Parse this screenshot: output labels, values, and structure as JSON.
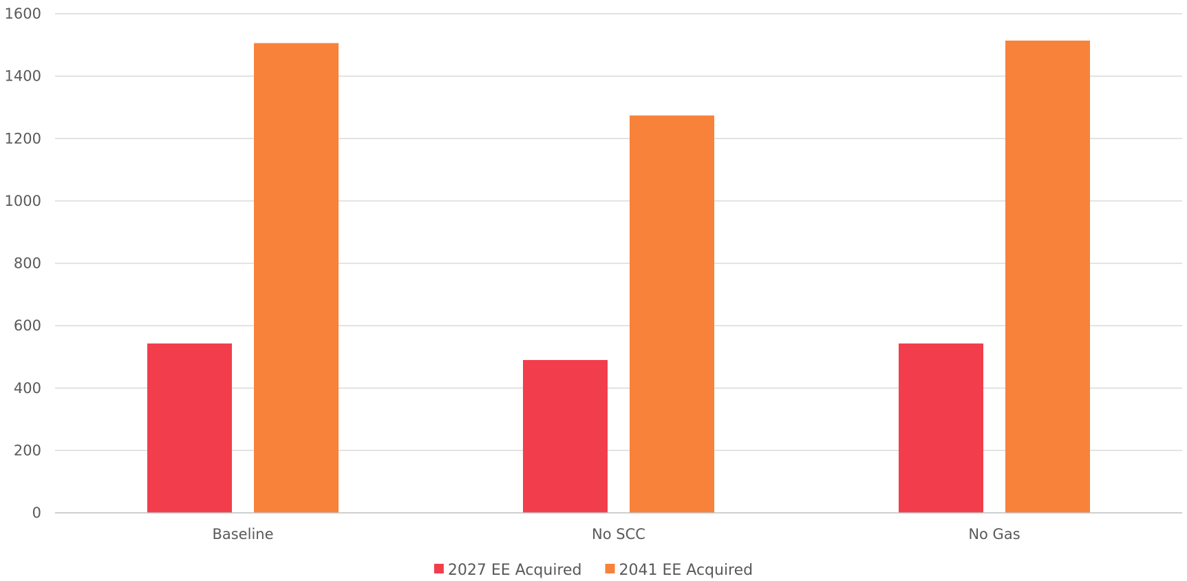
{
  "chart_data": {
    "type": "bar",
    "title": "",
    "xlabel": "",
    "ylabel": "",
    "categories": [
      "Baseline",
      "No SCC",
      "No Gas"
    ],
    "series": [
      {
        "name": "2027 EE Acquired",
        "color": "#f23e4c",
        "values": [
          543,
          490,
          543
        ]
      },
      {
        "name": "2041 EE Acquired",
        "color": "#f8823a",
        "values": [
          1506,
          1274,
          1514
        ]
      }
    ],
    "ylim": [
      0,
      1600
    ],
    "yticks": [
      0,
      200,
      400,
      600,
      800,
      1000,
      1200,
      1400,
      1600
    ],
    "grid": true,
    "legend": "bottom-center"
  }
}
